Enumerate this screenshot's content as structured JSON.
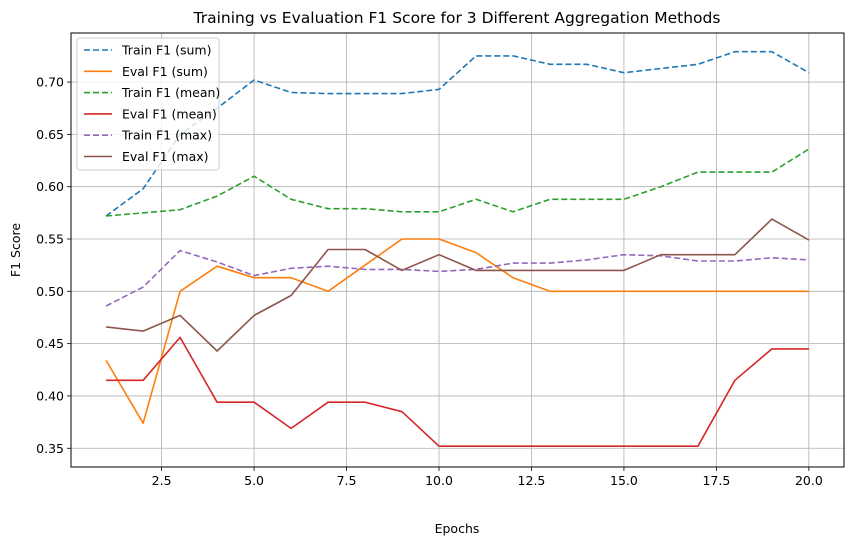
{
  "chart_data": {
    "type": "line",
    "title": "Training vs Evaluation F1 Score for 3 Different Aggregation Methods",
    "xlabel": "Epochs",
    "ylabel": "F1 Score",
    "xlim": [
      0.05,
      20.95
    ],
    "ylim": [
      0.3321,
      0.7469
    ],
    "xticks": [
      2.5,
      5.0,
      7.5,
      10.0,
      12.5,
      15.0,
      17.5,
      20.0
    ],
    "xtick_labels": [
      "2.5",
      "5.0",
      "7.5",
      "10.0",
      "12.5",
      "15.0",
      "17.5",
      "20.0"
    ],
    "yticks": [
      0.35,
      0.4,
      0.45,
      0.5,
      0.55,
      0.6,
      0.65,
      0.7
    ],
    "ytick_labels": [
      "0.35",
      "0.40",
      "0.45",
      "0.50",
      "0.55",
      "0.60",
      "0.65",
      "0.70"
    ],
    "grid": true,
    "legend_position": "upper-left",
    "x": [
      1,
      2,
      3,
      4,
      5,
      6,
      7,
      8,
      9,
      10,
      11,
      12,
      13,
      14,
      15,
      16,
      17,
      18,
      19,
      20
    ],
    "series": [
      {
        "name": "Train F1 (sum)",
        "color": "#1f77b4",
        "dash": true,
        "values": [
          0.572,
          0.598,
          0.65,
          0.675,
          0.702,
          0.69,
          0.689,
          0.689,
          0.689,
          0.693,
          0.725,
          0.725,
          0.717,
          0.717,
          0.709,
          0.713,
          0.717,
          0.729,
          0.729,
          0.709
        ]
      },
      {
        "name": "Eval F1 (sum)",
        "color": "#ff7f0e",
        "dash": false,
        "values": [
          0.434,
          0.374,
          0.5,
          0.524,
          0.513,
          0.513,
          0.5,
          0.525,
          0.55,
          0.55,
          0.537,
          0.513,
          0.5,
          0.5,
          0.5,
          0.5,
          0.5,
          0.5,
          0.5,
          0.5
        ]
      },
      {
        "name": "Train F1 (mean)",
        "color": "#2ca02c",
        "dash": true,
        "values": [
          0.572,
          0.575,
          0.578,
          0.591,
          0.61,
          0.588,
          0.579,
          0.579,
          0.576,
          0.576,
          0.588,
          0.576,
          0.588,
          0.588,
          0.588,
          0.6,
          0.614,
          0.614,
          0.614,
          0.636
        ]
      },
      {
        "name": "Eval F1 (mean)",
        "color": "#d62728",
        "dash": false,
        "values": [
          0.415,
          0.415,
          0.456,
          0.394,
          0.394,
          0.369,
          0.394,
          0.394,
          0.385,
          0.352,
          0.352,
          0.352,
          0.352,
          0.352,
          0.352,
          0.352,
          0.352,
          0.415,
          0.445,
          0.445
        ]
      },
      {
        "name": "Train F1 (max)",
        "color": "#9467bd",
        "dash": true,
        "values": [
          0.486,
          0.504,
          0.539,
          0.528,
          0.515,
          0.522,
          0.524,
          0.521,
          0.521,
          0.519,
          0.521,
          0.527,
          0.527,
          0.53,
          0.535,
          0.534,
          0.529,
          0.529,
          0.532,
          0.53
        ]
      },
      {
        "name": "Eval F1 (max)",
        "color": "#8c564b",
        "dash": false,
        "values": [
          0.466,
          0.462,
          0.477,
          0.443,
          0.477,
          0.496,
          0.54,
          0.54,
          0.52,
          0.535,
          0.52,
          0.52,
          0.52,
          0.52,
          0.52,
          0.535,
          0.535,
          0.535,
          0.569,
          0.549
        ]
      }
    ]
  }
}
